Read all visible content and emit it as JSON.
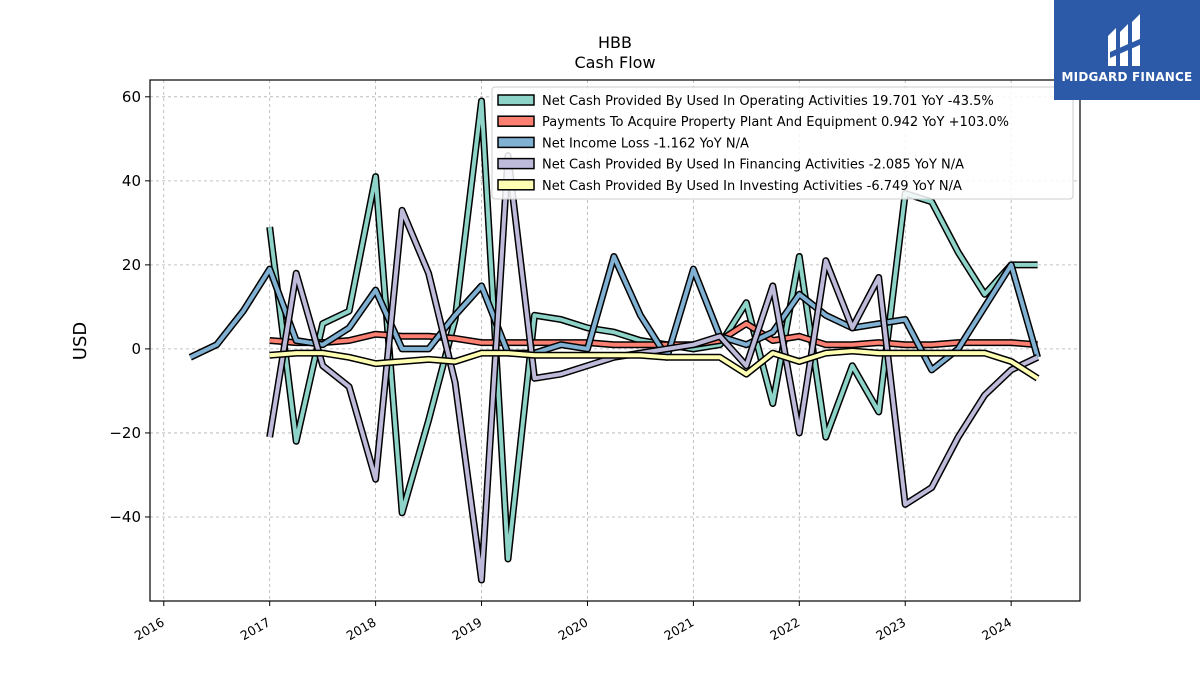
{
  "brand": {
    "name": "MIDGARD FINANCE",
    "color": "#2c5aa8"
  },
  "chart_data": {
    "type": "line",
    "title": "HBB",
    "subtitle": "Cash Flow",
    "xlabel": "",
    "ylabel": "USD",
    "x_ticks": [
      "2016",
      "2017",
      "2018",
      "2019",
      "2020",
      "2021",
      "2022",
      "2023",
      "2024"
    ],
    "y_ticks": [
      60,
      40,
      20,
      0,
      -20,
      -40
    ],
    "xlim": [
      2015.87,
      2024.65
    ],
    "ylim": [
      -60,
      64
    ],
    "grid": true,
    "legend_position": "top-right",
    "series": [
      {
        "name": "Net Cash Provided By Used In Operating Activities  19.701 YoY -43.5%",
        "color": "#8dd3c7",
        "points": [
          [
            2017.0,
            29
          ],
          [
            2017.25,
            -22
          ],
          [
            2017.5,
            6
          ],
          [
            2017.75,
            9
          ],
          [
            2018.0,
            41
          ],
          [
            2018.25,
            -39
          ],
          [
            2018.5,
            -17
          ],
          [
            2018.75,
            7
          ],
          [
            2019.0,
            59
          ],
          [
            2019.25,
            -50
          ],
          [
            2019.5,
            8
          ],
          [
            2019.75,
            7
          ],
          [
            2020.0,
            5
          ],
          [
            2020.25,
            4
          ],
          [
            2020.5,
            2
          ],
          [
            2020.75,
            1
          ],
          [
            2021.0,
            0
          ],
          [
            2021.25,
            1
          ],
          [
            2021.5,
            11
          ],
          [
            2021.75,
            -13
          ],
          [
            2022.0,
            22
          ],
          [
            2022.25,
            -21
          ],
          [
            2022.5,
            -4
          ],
          [
            2022.75,
            -15
          ],
          [
            2023.0,
            37
          ],
          [
            2023.25,
            35
          ],
          [
            2023.5,
            23
          ],
          [
            2023.75,
            13
          ],
          [
            2024.0,
            20
          ],
          [
            2024.25,
            20
          ]
        ]
      },
      {
        "name": "Payments To Acquire Property Plant And Equipment  0.942 YoY +103.0%",
        "color": "#fb8072",
        "points": [
          [
            2017.0,
            2
          ],
          [
            2017.25,
            1.5
          ],
          [
            2017.5,
            1.5
          ],
          [
            2017.75,
            2
          ],
          [
            2018.0,
            3.5
          ],
          [
            2018.25,
            3
          ],
          [
            2018.5,
            3
          ],
          [
            2018.75,
            2.5
          ],
          [
            2019.0,
            1.5
          ],
          [
            2019.25,
            1.5
          ],
          [
            2019.5,
            1.5
          ],
          [
            2019.75,
            1.5
          ],
          [
            2020.0,
            1.5
          ],
          [
            2020.25,
            1
          ],
          [
            2020.5,
            1
          ],
          [
            2020.75,
            1
          ],
          [
            2021.0,
            1
          ],
          [
            2021.25,
            2
          ],
          [
            2021.5,
            6
          ],
          [
            2021.75,
            2
          ],
          [
            2022.0,
            3
          ],
          [
            2022.25,
            1
          ],
          [
            2022.5,
            1
          ],
          [
            2022.75,
            1.5
          ],
          [
            2023.0,
            1
          ],
          [
            2023.25,
            1
          ],
          [
            2023.5,
            1.5
          ],
          [
            2023.75,
            1.5
          ],
          [
            2024.0,
            1.5
          ],
          [
            2024.25,
            1
          ]
        ]
      },
      {
        "name": "Net Income Loss  -1.162 YoY N/A",
        "color": "#80b1d3",
        "points": [
          [
            2016.25,
            -2
          ],
          [
            2016.5,
            1
          ],
          [
            2016.75,
            9
          ],
          [
            2017.0,
            19
          ],
          [
            2017.25,
            2
          ],
          [
            2017.5,
            1
          ],
          [
            2017.75,
            5
          ],
          [
            2018.0,
            14
          ],
          [
            2018.25,
            0
          ],
          [
            2018.5,
            0
          ],
          [
            2018.75,
            8
          ],
          [
            2019.0,
            15
          ],
          [
            2019.25,
            -1
          ],
          [
            2019.5,
            -1
          ],
          [
            2019.75,
            1
          ],
          [
            2020.0,
            0
          ],
          [
            2020.25,
            22
          ],
          [
            2020.5,
            8
          ],
          [
            2020.75,
            -2
          ],
          [
            2021.0,
            19
          ],
          [
            2021.25,
            3
          ],
          [
            2021.5,
            1
          ],
          [
            2021.75,
            4
          ],
          [
            2022.0,
            13
          ],
          [
            2022.25,
            8
          ],
          [
            2022.5,
            5
          ],
          [
            2022.75,
            6
          ],
          [
            2023.0,
            7
          ],
          [
            2023.25,
            -5
          ],
          [
            2023.5,
            0
          ],
          [
            2023.75,
            10
          ],
          [
            2024.0,
            20
          ],
          [
            2024.25,
            -2
          ]
        ]
      },
      {
        "name": "Net Cash Provided By Used In Financing Activities  -2.085 YoY N/A",
        "color": "#bebada",
        "points": [
          [
            2017.0,
            -21
          ],
          [
            2017.25,
            18
          ],
          [
            2017.5,
            -4
          ],
          [
            2017.75,
            -9
          ],
          [
            2018.0,
            -31
          ],
          [
            2018.25,
            33
          ],
          [
            2018.5,
            18
          ],
          [
            2018.75,
            -8
          ],
          [
            2019.0,
            -55
          ],
          [
            2019.25,
            46
          ],
          [
            2019.5,
            -7
          ],
          [
            2019.75,
            -6
          ],
          [
            2020.0,
            -4
          ],
          [
            2020.25,
            -2
          ],
          [
            2020.5,
            -1
          ],
          [
            2020.75,
            0
          ],
          [
            2021.0,
            1
          ],
          [
            2021.25,
            3
          ],
          [
            2021.5,
            -4
          ],
          [
            2021.75,
            15
          ],
          [
            2022.0,
            -20
          ],
          [
            2022.25,
            21
          ],
          [
            2022.5,
            5
          ],
          [
            2022.75,
            17
          ],
          [
            2023.0,
            -37
          ],
          [
            2023.25,
            -33
          ],
          [
            2023.5,
            -21
          ],
          [
            2023.75,
            -11
          ],
          [
            2024.0,
            -5
          ],
          [
            2024.25,
            -2
          ]
        ]
      },
      {
        "name": "Net Cash Provided By Used In Investing Activities  -6.749 YoY N/A",
        "color": "#ffffb3",
        "points": [
          [
            2017.0,
            -1.5
          ],
          [
            2017.25,
            -1
          ],
          [
            2017.5,
            -1
          ],
          [
            2017.75,
            -2
          ],
          [
            2018.0,
            -3.5
          ],
          [
            2018.25,
            -3
          ],
          [
            2018.5,
            -2.5
          ],
          [
            2018.75,
            -3
          ],
          [
            2019.0,
            -1
          ],
          [
            2019.25,
            -1
          ],
          [
            2019.5,
            -1.5
          ],
          [
            2019.75,
            -1.5
          ],
          [
            2020.0,
            -1.5
          ],
          [
            2020.25,
            -1.5
          ],
          [
            2020.5,
            -1.5
          ],
          [
            2020.75,
            -2
          ],
          [
            2021.0,
            -2
          ],
          [
            2021.25,
            -2
          ],
          [
            2021.5,
            -6
          ],
          [
            2021.75,
            -1
          ],
          [
            2022.0,
            -3
          ],
          [
            2022.25,
            -1
          ],
          [
            2022.5,
            -0.5
          ],
          [
            2022.75,
            -1
          ],
          [
            2023.0,
            -1
          ],
          [
            2023.25,
            -1
          ],
          [
            2023.5,
            -1
          ],
          [
            2023.75,
            -1
          ],
          [
            2024.0,
            -3
          ],
          [
            2024.25,
            -7
          ]
        ]
      }
    ]
  }
}
